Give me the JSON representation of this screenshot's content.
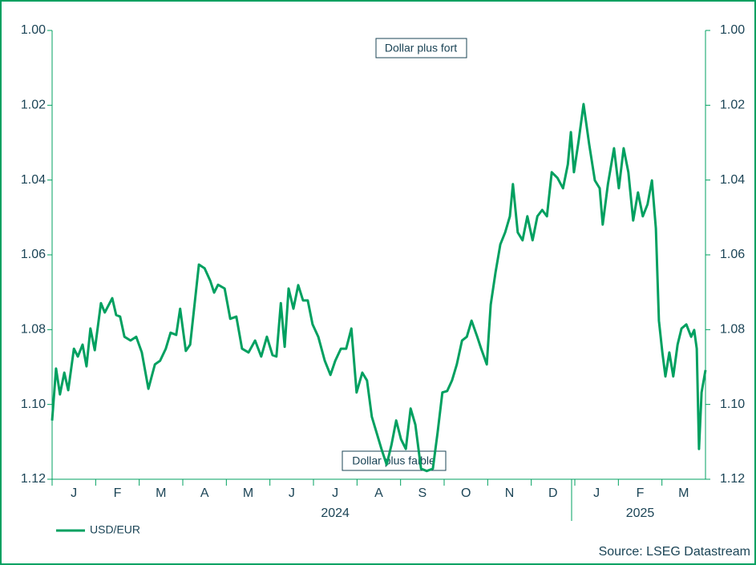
{
  "chart_data": {
    "type": "line",
    "annotations": [
      "Dollar plus fort",
      "Dollar plus faible"
    ],
    "source": "Source: LSEG Datastream",
    "year_labels": [
      {
        "value": 6.5,
        "label": "2024"
      },
      {
        "value": 13.5,
        "label": "2025"
      }
    ],
    "xlim": [
      0,
      15
    ],
    "xticks": [
      {
        "value": 0.5,
        "label": "J"
      },
      {
        "value": 1.5,
        "label": "F"
      },
      {
        "value": 2.5,
        "label": "M"
      },
      {
        "value": 3.5,
        "label": "A"
      },
      {
        "value": 4.5,
        "label": "M"
      },
      {
        "value": 5.5,
        "label": "J"
      },
      {
        "value": 6.5,
        "label": "J"
      },
      {
        "value": 7.5,
        "label": "A"
      },
      {
        "value": 8.5,
        "label": "S"
      },
      {
        "value": 9.5,
        "label": "O"
      },
      {
        "value": 10.5,
        "label": "N"
      },
      {
        "value": 11.5,
        "label": "D"
      },
      {
        "value": 12.5,
        "label": "J"
      },
      {
        "value": 13.5,
        "label": "F"
      },
      {
        "value": 14.5,
        "label": "M"
      }
    ],
    "ylim": [
      1.12,
      1.0
    ],
    "yticks": [
      {
        "value": 1.0,
        "label": "1.00"
      },
      {
        "value": 1.02,
        "label": "1.02"
      },
      {
        "value": 1.04,
        "label": "1.04"
      },
      {
        "value": 1.06,
        "label": "1.06"
      },
      {
        "value": 1.08,
        "label": "1.08"
      },
      {
        "value": 1.1,
        "label": "1.10"
      },
      {
        "value": 1.12,
        "label": "1.12"
      }
    ],
    "y2lim": [
      1.12,
      1.0
    ],
    "y2ticks": [
      {
        "value": 1.0,
        "label": "1.00"
      },
      {
        "value": 1.02,
        "label": "1.02"
      },
      {
        "value": 1.04,
        "label": "1.04"
      },
      {
        "value": 1.06,
        "label": "1.06"
      },
      {
        "value": 1.08,
        "label": "1.08"
      },
      {
        "value": 1.1,
        "label": "1.10"
      },
      {
        "value": 1.12,
        "label": "1.12"
      }
    ],
    "series": [
      {
        "name": "USD/EUR",
        "color": "#00a060",
        "x": [
          0,
          0.09,
          0.18,
          0.28,
          0.37,
          0.5,
          0.59,
          0.7,
          0.79,
          0.88,
          0.98,
          1.12,
          1.21,
          1.38,
          1.47,
          1.56,
          1.66,
          1.8,
          1.93,
          2.06,
          2.21,
          2.36,
          2.48,
          2.61,
          2.72,
          2.85,
          2.94,
          3.07,
          3.17,
          3.26,
          3.37,
          3.5,
          3.63,
          3.72,
          3.81,
          3.96,
          4.09,
          4.23,
          4.36,
          4.51,
          4.66,
          4.8,
          4.93,
          5.06,
          5.15,
          5.25,
          5.34,
          5.43,
          5.54,
          5.65,
          5.76,
          5.87,
          5.98,
          6.11,
          6.26,
          6.39,
          6.5,
          6.63,
          6.75,
          6.87,
          6.99,
          7.12,
          7.23,
          7.34,
          7.45,
          7.56,
          7.68,
          7.79,
          7.9,
          8.01,
          8.12,
          8.23,
          8.34,
          8.47,
          8.6,
          8.74,
          8.85,
          8.96,
          9.07,
          9.18,
          9.29,
          9.41,
          9.52,
          9.63,
          9.76,
          9.85,
          9.98,
          10.07,
          10.18,
          10.29,
          10.4,
          10.51,
          10.58,
          10.69,
          10.8,
          10.91,
          11.03,
          11.14,
          11.25,
          11.36,
          11.47,
          11.6,
          11.73,
          11.84,
          11.91,
          11.98,
          12.09,
          12.2,
          12.33,
          12.46,
          12.57,
          12.64,
          12.76,
          12.9,
          13.01,
          13.12,
          13.23,
          13.34,
          13.45,
          13.56,
          13.67,
          13.77,
          13.86,
          13.93,
          14.01,
          14.08,
          14.17,
          14.26,
          14.36,
          14.45,
          14.56,
          14.67,
          14.74,
          14.8,
          14.85,
          14.91,
          15
        ],
        "values": [
          1.1043,
          1.0904,
          1.0973,
          1.0915,
          1.0962,
          1.0851,
          1.0872,
          1.084,
          1.0898,
          1.0797,
          1.0855,
          1.0729,
          1.0754,
          1.0716,
          1.0761,
          1.0765,
          1.0819,
          1.0829,
          1.0819,
          1.0861,
          1.0958,
          1.0893,
          1.0883,
          1.0851,
          1.0808,
          1.0814,
          1.0744,
          1.0857,
          1.084,
          1.0744,
          1.0626,
          1.0636,
          1.0669,
          1.0701,
          1.068,
          1.069,
          1.0771,
          1.0765,
          1.0851,
          1.0861,
          1.0829,
          1.0872,
          1.0819,
          1.0868,
          1.0872,
          1.0729,
          1.0846,
          1.069,
          1.0744,
          1.0681,
          1.0722,
          1.0722,
          1.0786,
          1.0819,
          1.0883,
          1.0921,
          1.0883,
          1.0851,
          1.0851,
          1.0797,
          1.0968,
          1.0915,
          1.0936,
          1.1033,
          1.1076,
          1.1119,
          1.1161,
          1.1108,
          1.1043,
          1.1093,
          1.1119,
          1.1011,
          1.1054,
          1.1172,
          1.1178,
          1.1172,
          1.1076,
          1.0968,
          1.0964,
          1.0936,
          1.0893,
          1.0829,
          1.0819,
          1.0776,
          1.0819,
          1.0851,
          1.0893,
          1.0733,
          1.0647,
          1.0572,
          1.054,
          1.0497,
          1.0411,
          1.054,
          1.0561,
          1.0497,
          1.0561,
          1.0497,
          1.048,
          1.0497,
          1.0379,
          1.0394,
          1.0422,
          1.0358,
          1.0272,
          1.0379,
          1.0293,
          1.0197,
          1.0304,
          1.0401,
          1.0422,
          1.0519,
          1.0411,
          1.0315,
          1.0422,
          1.0315,
          1.0379,
          1.0508,
          1.0433,
          1.0497,
          1.0465,
          1.0401,
          1.0529,
          1.0776,
          1.0861,
          1.0925,
          1.0861,
          1.0925,
          1.084,
          1.0797,
          1.0786,
          1.0819,
          1.0801,
          1.0851,
          1.1119,
          1.0968,
          1.0908
        ]
      }
    ]
  }
}
